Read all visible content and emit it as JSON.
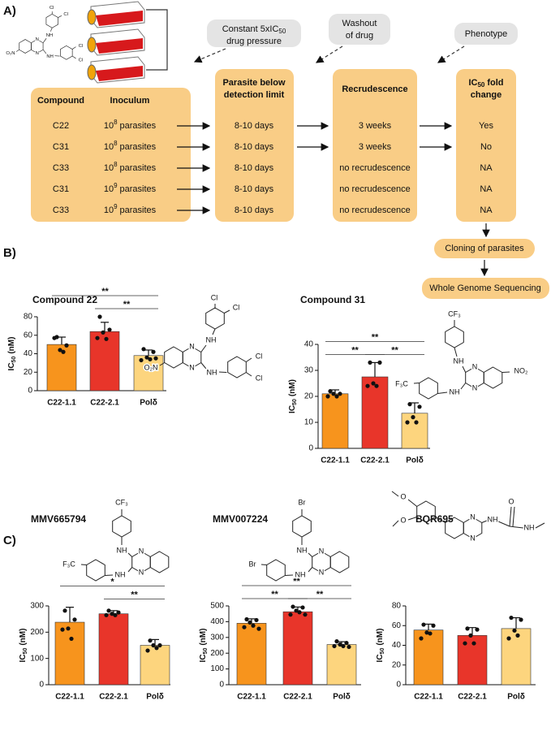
{
  "panel_a": {
    "label": "A)",
    "molecule_labels": [
      "Cl",
      "Cl",
      "NH",
      "O₂N",
      "N",
      "N",
      "NH",
      "Cl",
      "Cl"
    ],
    "callouts": [
      {
        "line1": "Constant 5xIC",
        "sub": "50",
        "line2": "drug pressure"
      },
      {
        "line1": "Washout",
        "line2": "of drug"
      },
      {
        "line1": "Phenotype"
      }
    ],
    "inoculum_table": {
      "headers": [
        "Compound",
        "Inoculum"
      ],
      "rows": [
        {
          "compound": "C22",
          "base": "10",
          "exponent": "8",
          "unit": "parasites"
        },
        {
          "compound": "C31",
          "base": "10",
          "exponent": "8",
          "unit": "parasites"
        },
        {
          "compound": "C33",
          "base": "10",
          "exponent": "8",
          "unit": "parasites"
        },
        {
          "compound": "C31",
          "base": "10",
          "exponent": "9",
          "unit": "parasites"
        },
        {
          "compound": "C33",
          "base": "10",
          "exponent": "9",
          "unit": "parasites"
        }
      ]
    },
    "detection": {
      "header": [
        "Parasite below",
        "detection limit"
      ],
      "values": [
        "8-10 days",
        "8-10 days",
        "8-10 days",
        "8-10 days",
        "8-10 days"
      ]
    },
    "recrudescence": {
      "header": "Recrudescence",
      "values": [
        "3 weeks",
        "3 weeks",
        "no recrudescence",
        "no recrudescence",
        "no recrudescence"
      ]
    },
    "fold_change": {
      "header": {
        "main": "IC",
        "sub": "50",
        "rest": "fold",
        "line2": "change"
      },
      "values": [
        "Yes",
        "No",
        "NA",
        "NA",
        "NA"
      ]
    },
    "followup": [
      "Cloning of parasites",
      "Whole Genome Sequencing"
    ]
  },
  "panel_b_label": "B)",
  "panel_c_label": "C)",
  "chart_data": [
    {
      "type": "bar",
      "title": "Compound 22",
      "ylabel": {
        "text": "IC",
        "sub": "50",
        "unit": "(nM)"
      },
      "categories": [
        "C22-1.1",
        "C22-2.1",
        "Polδ"
      ],
      "colors": [
        "#f7941d",
        "#e8352a",
        "#fdd57e"
      ],
      "values": [
        50,
        64,
        38
      ],
      "errors": [
        8,
        10,
        6
      ],
      "points": [
        [
          58,
          49,
          44,
          42,
          57
        ],
        [
          80,
          66,
          63,
          56,
          57
        ],
        [
          45,
          42,
          36,
          34,
          33,
          35
        ]
      ],
      "ylim": [
        0,
        80
      ],
      "yticks": [
        0,
        20,
        40,
        60,
        80
      ],
      "significance": [
        {
          "between": [
            "C22-1.1",
            "Polδ"
          ],
          "label": "**"
        },
        {
          "between": [
            "C22-2.1",
            "Polδ"
          ],
          "label": "**"
        }
      ],
      "structure_labels": [
        "Cl",
        "Cl",
        "NH",
        "O₂N",
        "N",
        "N",
        "NH",
        "Cl",
        "Cl"
      ]
    },
    {
      "type": "bar",
      "title": "Compound 31",
      "ylabel": {
        "text": "IC",
        "sub": "50",
        "unit": "(nM)"
      },
      "categories": [
        "C22-1.1",
        "C22-2.1",
        "Polδ"
      ],
      "colors": [
        "#f7941d",
        "#e8352a",
        "#fdd57e"
      ],
      "values": [
        21,
        27.5,
        13.5
      ],
      "errors": [
        1.5,
        5.5,
        4
      ],
      "points": [
        [
          22,
          21,
          21,
          20,
          20
        ],
        [
          33,
          33,
          25,
          24,
          24
        ],
        [
          17,
          16,
          12,
          10,
          10
        ]
      ],
      "ylim": [
        0,
        40
      ],
      "yticks": [
        0,
        10,
        20,
        30,
        40
      ],
      "significance": [
        {
          "between": [
            "C22-1.1",
            "Polδ"
          ],
          "label": "**"
        },
        {
          "between": [
            "C22-1.1",
            "C22-2.1"
          ],
          "label": "**"
        },
        {
          "between": [
            "C22-2.1",
            "Polδ"
          ],
          "label": "**"
        }
      ],
      "structure_labels": [
        "CF₃",
        "NH",
        "F₃C",
        "NH",
        "N",
        "N",
        "NO₂"
      ]
    },
    {
      "type": "bar",
      "title": "MMV665794",
      "ylabel": {
        "text": "IC",
        "sub": "50",
        "unit": "(nM)"
      },
      "categories": [
        "C22-1.1",
        "C22-2.1",
        "Polδ"
      ],
      "colors": [
        "#f7941d",
        "#e8352a",
        "#fdd57e"
      ],
      "values": [
        238,
        270,
        150
      ],
      "errors": [
        57,
        12,
        22
      ],
      "points": [
        [
          282,
          248,
          214,
          175,
          210
        ],
        [
          282,
          275,
          270,
          265,
          265
        ],
        [
          168,
          150,
          150,
          140,
          130
        ]
      ],
      "ylim": [
        0,
        300
      ],
      "yticks": [
        0,
        100,
        200,
        300
      ],
      "significance": [
        {
          "between": [
            "C22-1.1",
            "Polδ"
          ],
          "label": "*"
        },
        {
          "between": [
            "C22-2.1",
            "Polδ"
          ],
          "label": "**"
        }
      ],
      "structure_labels": [
        "CF₃",
        "NH",
        "F₃C",
        "NH",
        "N",
        "N"
      ]
    },
    {
      "type": "bar",
      "title": "MMV007224",
      "ylabel": {
        "text": "IC",
        "sub": "50",
        "unit": "(nM)"
      },
      "categories": [
        "C22-1.1",
        "C22-2.1",
        "Polδ"
      ],
      "colors": [
        "#f7941d",
        "#e8352a",
        "#fdd57e"
      ],
      "values": [
        390,
        463,
        255
      ],
      "errors": [
        28,
        30,
        18
      ],
      "points": [
        [
          415,
          410,
          395,
          375,
          365,
          355
        ],
        [
          495,
          490,
          470,
          460,
          445,
          445
        ],
        [
          275,
          265,
          255,
          245,
          245,
          240
        ]
      ],
      "ylim": [
        0,
        500
      ],
      "yticks": [
        0,
        100,
        200,
        300,
        400,
        500
      ],
      "significance": [
        {
          "between": [
            "C22-1.1",
            "Polδ"
          ],
          "label": "**"
        },
        {
          "between": [
            "C22-1.1",
            "C22-2.1"
          ],
          "label": "**"
        },
        {
          "between": [
            "C22-2.1",
            "Polδ"
          ],
          "label": "**"
        }
      ],
      "structure_labels": [
        "Br",
        "NH",
        "Br",
        "NH",
        "N",
        "N"
      ]
    },
    {
      "type": "bar",
      "title": "BQR695",
      "ylabel": {
        "text": "IC",
        "sub": "50",
        "unit": "(nM)"
      },
      "categories": [
        "C22-1.1",
        "C22-2.1",
        "Polδ"
      ],
      "colors": [
        "#f7941d",
        "#e8352a",
        "#fdd57e"
      ],
      "values": [
        55.5,
        50,
        57
      ],
      "errors": [
        6,
        8,
        11
      ],
      "points": [
        [
          61,
          60,
          53,
          52,
          47
        ],
        [
          57,
          56,
          50,
          42,
          42
        ],
        [
          68,
          66,
          55,
          50,
          47
        ]
      ],
      "ylim": [
        0,
        80
      ],
      "yticks": [
        0,
        20,
        40,
        60,
        80
      ],
      "significance": [],
      "structure_labels": [
        "O",
        "O",
        "N",
        "N",
        "NH",
        "O",
        "NH"
      ]
    }
  ]
}
